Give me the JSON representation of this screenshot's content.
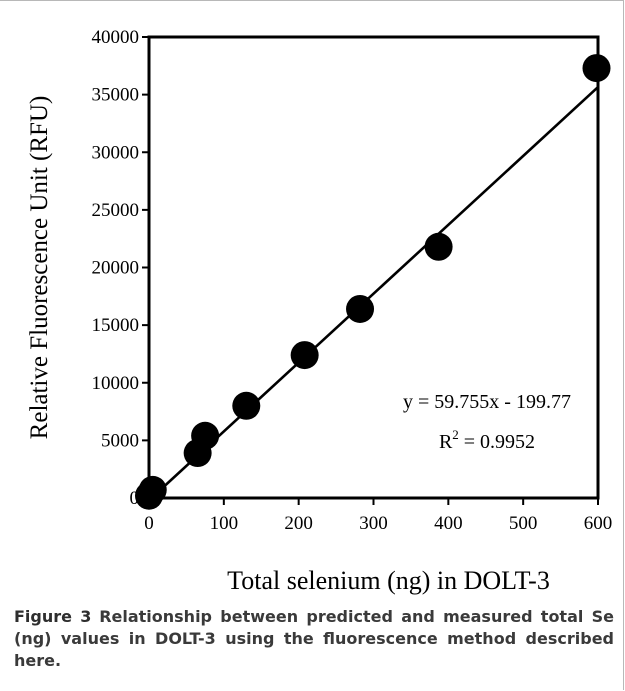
{
  "chart_data": {
    "type": "scatter",
    "xlabel": "Total selenium (ng) in DOLT-3",
    "ylabel": "Relative Fluorescence Unit (RFU)",
    "xlim": [
      0,
      600
    ],
    "ylim": [
      0,
      40000
    ],
    "xticks": [
      0,
      100,
      200,
      300,
      400,
      500,
      600
    ],
    "yticks": [
      0,
      5000,
      10000,
      15000,
      20000,
      25000,
      30000,
      35000,
      40000
    ],
    "grid": false,
    "points": [
      {
        "x": 0,
        "y": 200
      },
      {
        "x": 5,
        "y": 700
      },
      {
        "x": 65,
        "y": 3900
      },
      {
        "x": 75,
        "y": 5400
      },
      {
        "x": 130,
        "y": 8000
      },
      {
        "x": 208,
        "y": 12400
      },
      {
        "x": 282,
        "y": 16400
      },
      {
        "x": 387,
        "y": 21800
      },
      {
        "x": 598,
        "y": 37300
      }
    ],
    "trendline": {
      "slope": 59.755,
      "intercept": -199.77
    },
    "annotations": {
      "equation": "y = 59.755x - 199.77",
      "r2_prefix": "R",
      "r2_sup": "2",
      "r2_value": " = 0.9952"
    }
  },
  "caption": {
    "label": "Figure 3",
    "text": "Relationship between predicted and measured total Se (ng) values in DOLT-3 using the fluorescence method described here."
  }
}
